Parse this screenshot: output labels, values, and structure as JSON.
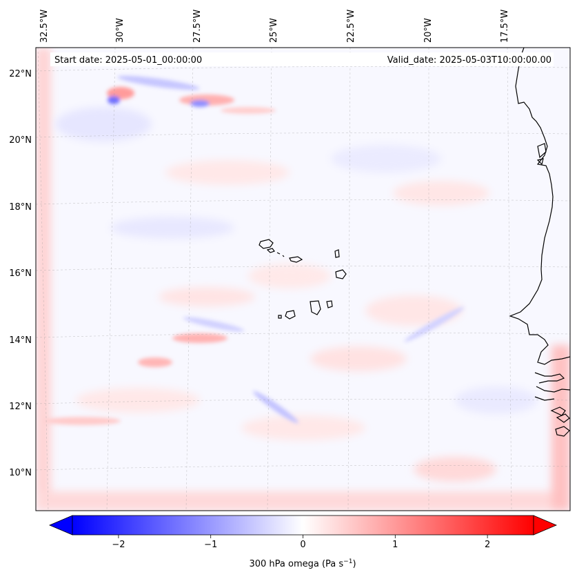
{
  "map": {
    "start_label": "Start date: 2025-05-01_00:00:00",
    "valid_label": "Valid_date: 2025-05-03T10:00:00.00",
    "lon_ticks": [
      "32.5°W",
      "30°W",
      "27.5°W",
      "25°W",
      "22.5°W",
      "20°W",
      "17.5°W"
    ],
    "lat_ticks": [
      "22°N",
      "20°N",
      "18°N",
      "16°N",
      "14°N",
      "12°N",
      "10°N"
    ],
    "extent": {
      "lon_min": -32.6,
      "lon_max": -15.2,
      "lat_min": 8.9,
      "lat_max": 22.8
    }
  },
  "colorbar": {
    "label": "300 hPa omega (Pa s",
    "label_sup": "−1",
    "label_end": ")",
    "ticks": [
      "−2",
      "−1",
      "0",
      "1",
      "2"
    ],
    "tick_values": [
      -2,
      -1,
      0,
      1,
      2
    ],
    "range": [
      -2.5,
      2.5
    ],
    "colormap": "bwr",
    "extend": "both",
    "colors": {
      "negative": "#0000ff",
      "zero": "#ffffff",
      "positive": "#ff0000"
    }
  }
}
